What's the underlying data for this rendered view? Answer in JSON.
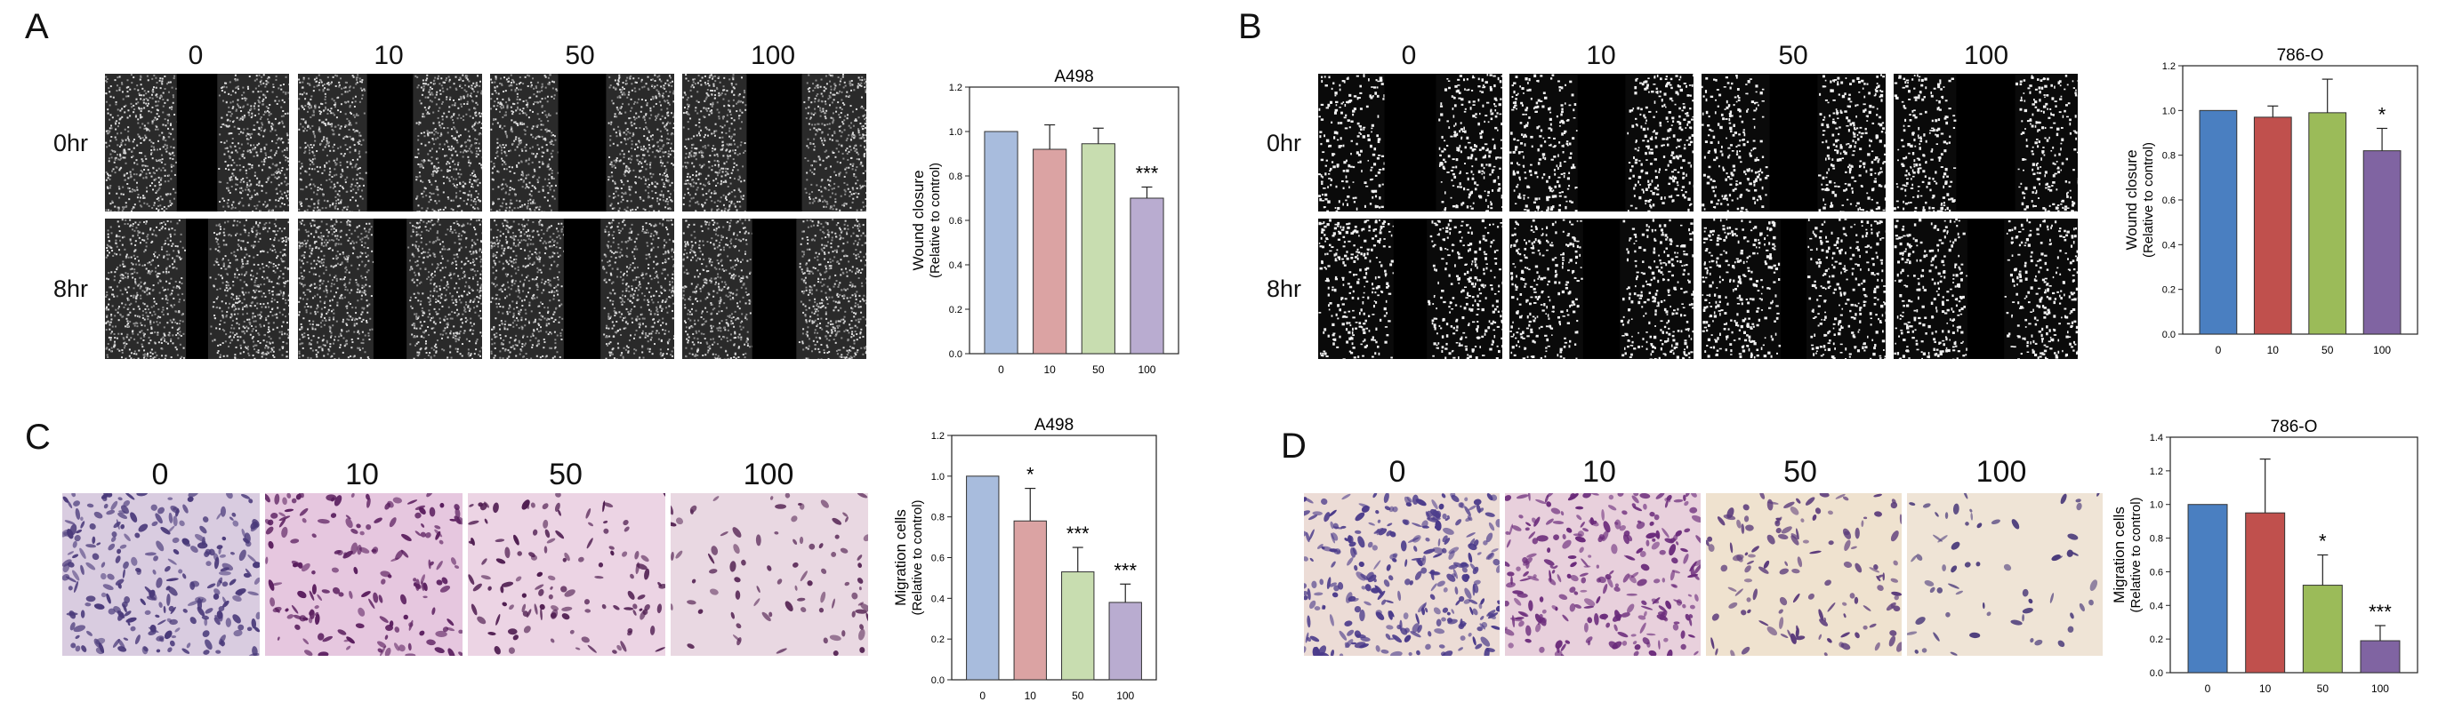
{
  "panels": [
    {
      "letter": "A",
      "doses": [
        "0",
        "10",
        "50",
        "100"
      ],
      "times": [
        "0hr",
        "8hr"
      ]
    },
    {
      "letter": "B",
      "doses": [
        "0",
        "10",
        "50",
        "100"
      ],
      "times": [
        "0hr",
        "8hr"
      ]
    },
    {
      "letter": "C",
      "doses": [
        "0",
        "10",
        "50",
        "100"
      ]
    },
    {
      "letter": "D",
      "doses": [
        "0",
        "10",
        "50",
        "100"
      ]
    }
  ],
  "chart_data": [
    {
      "type": "bar",
      "title": "A498",
      "categories": [
        "0",
        "10",
        "50",
        "100"
      ],
      "values": [
        1.0,
        0.92,
        0.945,
        0.7
      ],
      "errors": [
        0,
        0.11,
        0.07,
        0.05
      ],
      "significance": [
        "",
        "",
        "",
        "***"
      ],
      "ylabel": "Wound closure",
      "ylabel2": "(Relative to control)",
      "ylim": [
        0,
        1.2
      ],
      "yticks": [
        "0.0",
        "0.2",
        "0.4",
        "0.6",
        "0.8",
        "1.0",
        "1.2"
      ],
      "colors": [
        "#a8bcdd",
        "#dba3a3",
        "#c8ddb0",
        "#b9acd0"
      ]
    },
    {
      "type": "bar",
      "title": "786-O",
      "categories": [
        "0",
        "10",
        "50",
        "100"
      ],
      "values": [
        1.0,
        0.97,
        0.99,
        0.82
      ],
      "errors": [
        0,
        0.05,
        0.15,
        0.1
      ],
      "significance": [
        "",
        "",
        "",
        "*"
      ],
      "ylabel": "Wound closure",
      "ylabel2": "(Relative to control)",
      "ylim": [
        0,
        1.2
      ],
      "yticks": [
        "0.0",
        "0.2",
        "0.4",
        "0.6",
        "0.8",
        "1.0",
        "1.2"
      ],
      "colors": [
        "#4a7fc1",
        "#c0504d",
        "#9bbb59",
        "#8064a2"
      ]
    },
    {
      "type": "bar",
      "title": "A498",
      "categories": [
        "0",
        "10",
        "50",
        "100"
      ],
      "values": [
        1.0,
        0.78,
        0.53,
        0.38
      ],
      "errors": [
        0,
        0.16,
        0.12,
        0.09
      ],
      "significance": [
        "",
        "*",
        "***",
        "***"
      ],
      "ylabel": "Migration cells",
      "ylabel2": "(Relative to control)",
      "ylim": [
        0,
        1.2
      ],
      "yticks": [
        "0.0",
        "0.2",
        "0.4",
        "0.6",
        "0.8",
        "1.0",
        "1.2"
      ],
      "colors": [
        "#a8bcdd",
        "#dba3a3",
        "#c8ddb0",
        "#b9acd0"
      ]
    },
    {
      "type": "bar",
      "title": "786-O",
      "categories": [
        "0",
        "10",
        "50",
        "100"
      ],
      "values": [
        1.0,
        0.95,
        0.52,
        0.19
      ],
      "errors": [
        0,
        0.32,
        0.18,
        0.09
      ],
      "significance": [
        "",
        "",
        "*",
        "***"
      ],
      "ylabel": "Migration cells",
      "ylabel2": "(Relative to control)",
      "ylim": [
        0,
        1.4
      ],
      "yticks": [
        "0.0",
        "0.2",
        "0.4",
        "0.6",
        "0.8",
        "1.0",
        "1.2",
        "1.4"
      ],
      "colors": [
        "#4a7fc1",
        "#c0504d",
        "#9bbb59",
        "#8064a2"
      ]
    }
  ]
}
